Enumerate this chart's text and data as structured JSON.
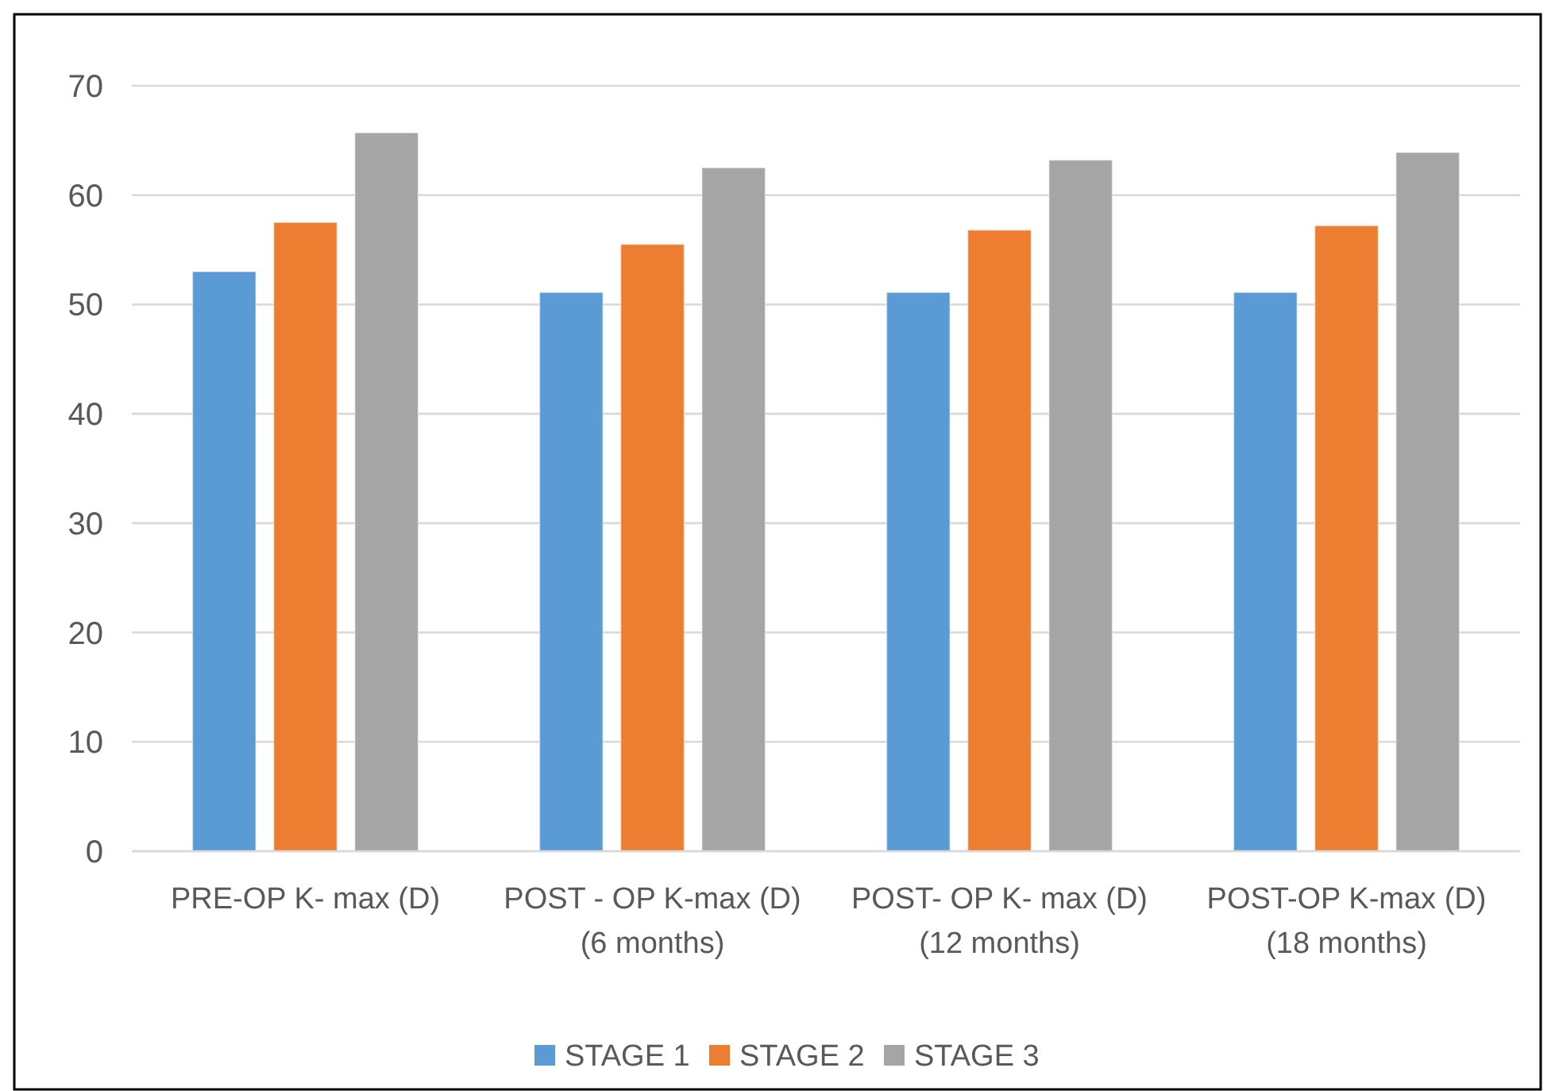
{
  "chart_data": {
    "type": "bar",
    "categories": [
      "PRE-OP K- max (D)",
      "POST - OP K-max (D)\n(6 months)",
      "POST- OP K- max (D)\n(12 months)",
      "POST-OP K-max (D)\n(18 months)"
    ],
    "series": [
      {
        "name": "STAGE 1",
        "color": "#5b9bd5",
        "values": [
          53.0,
          51.1,
          51.1,
          51.1
        ]
      },
      {
        "name": "STAGE 2",
        "color": "#ed7d31",
        "values": [
          57.5,
          55.5,
          56.8,
          57.2
        ]
      },
      {
        "name": "STAGE 3",
        "color": "#a5a5a5",
        "values": [
          65.7,
          62.5,
          63.2,
          63.9
        ]
      }
    ],
    "ylim": [
      0,
      70
    ],
    "yticks": [
      0,
      10,
      20,
      30,
      40,
      50,
      60,
      70
    ],
    "grid": "y",
    "legend": "bottom"
  }
}
